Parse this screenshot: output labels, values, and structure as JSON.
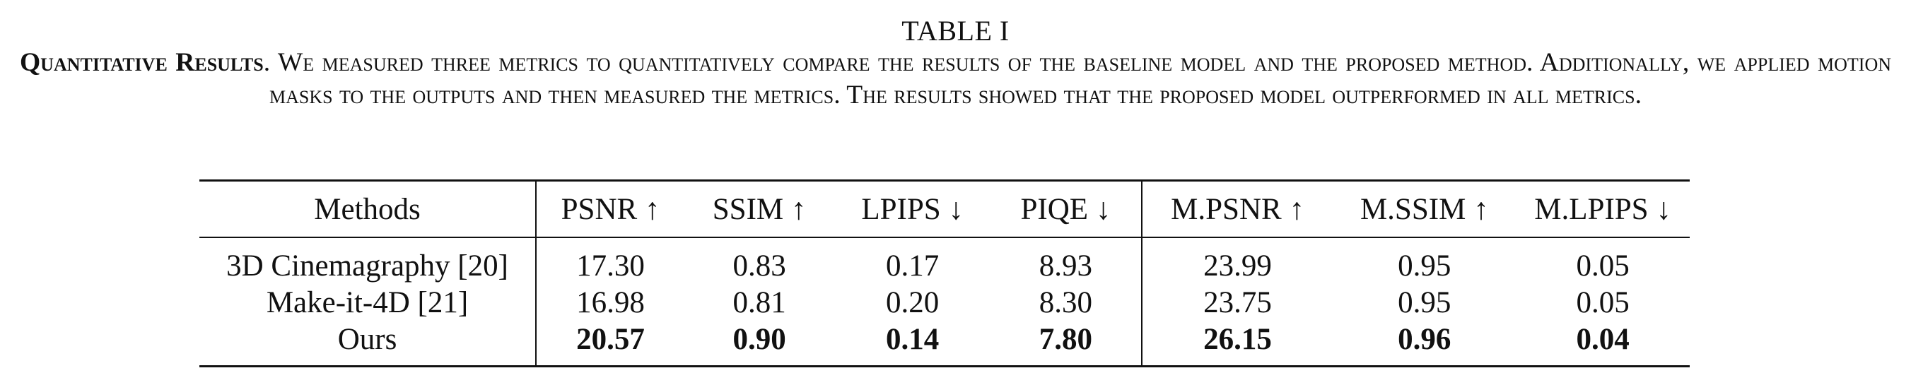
{
  "table_label": "TABLE I",
  "caption": {
    "title": "Quantitative Results",
    "text": ". We measured three metrics to quantitatively compare the results of the baseline model and the proposed method. Additionally, we applied motion masks to the outputs and then measured the metrics. The results showed that the proposed model outperformed in all metrics."
  },
  "table": {
    "headers": [
      "Methods",
      "PSNR ↑",
      "SSIM ↑",
      "LPIPS ↓",
      "PIQE ↓",
      "M.PSNR ↑",
      "M.SSIM ↑",
      "M.LPIPS ↓"
    ],
    "rows": [
      [
        "3D Cinemagraphy [20]",
        "17.30",
        "0.83",
        "0.17",
        "8.93",
        "23.99",
        "0.95",
        "0.05"
      ],
      [
        "Make-it-4D [21]",
        "16.98",
        "0.81",
        "0.20",
        "8.30",
        "23.75",
        "0.95",
        "0.05"
      ],
      [
        "Ours",
        "20.57",
        "0.90",
        "0.14",
        "7.80",
        "26.15",
        "0.96",
        "0.04"
      ]
    ],
    "bold_row": "Ours"
  }
}
